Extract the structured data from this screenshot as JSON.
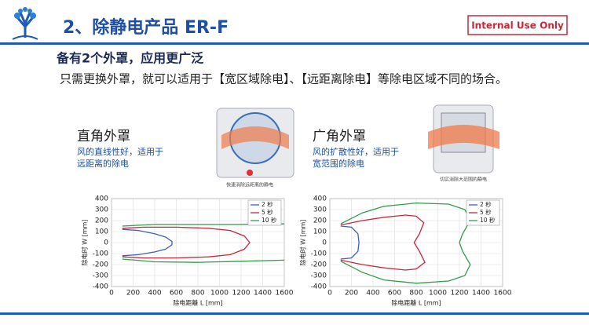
{
  "header": {
    "title": "2、除静电产品 ER-F",
    "badge": "Internal Use Only"
  },
  "subtitle": "备有2个外罩，应用更广泛",
  "description": "只需更换外罩，就可以适用于【宽区域除电】、【远距离除电】等除电区域不同的场合。",
  "panels": [
    {
      "title": "直角外罩",
      "lines": [
        "风的直线性好，适用于",
        "远距离的除电"
      ],
      "caption": "快速消除远距离的静电"
    },
    {
      "title": "广角外罩",
      "lines": [
        "风的扩散性好，适用于",
        "宽范围的除电"
      ],
      "caption": "切实消除大范围的静电"
    }
  ],
  "chart_data": [
    {
      "type": "line",
      "xlabel": "除电距離 L [mm]",
      "ylabel": "除电时 W [mm]",
      "xlim": [
        0,
        1600
      ],
      "ylim": [
        -400,
        400
      ],
      "xticks": [
        0,
        200,
        400,
        600,
        800,
        1000,
        1200,
        1400,
        1600
      ],
      "yticks": [
        -400,
        -300,
        -200,
        -100,
        0,
        100,
        200,
        300,
        400
      ],
      "grid": true,
      "legend": "upper right",
      "series": [
        {
          "name": "2 秒",
          "color": "#3b5fc0",
          "x": [
            100,
            250,
            400,
            500,
            560,
            560,
            500,
            400,
            250,
            100
          ],
          "values": [
            120,
            110,
            80,
            50,
            10,
            -20,
            -60,
            -85,
            -110,
            -120
          ]
        },
        {
          "name": "5 秒",
          "color": "#c8283a",
          "x": [
            100,
            300,
            600,
            900,
            1100,
            1230,
            1280,
            1230,
            1100,
            900,
            600,
            300,
            100
          ],
          "values": [
            130,
            140,
            140,
            130,
            110,
            60,
            0,
            -60,
            -110,
            -130,
            -140,
            -140,
            -130
          ]
        },
        {
          "name": "10 秒",
          "color": "#2e9e4a",
          "x": [
            100,
            400,
            800,
            1200,
            1600,
            null,
            100,
            400,
            800,
            1200,
            1600
          ],
          "values": [
            150,
            165,
            165,
            165,
            170,
            null,
            -150,
            -175,
            -180,
            -170,
            -160
          ]
        }
      ]
    },
    {
      "type": "line",
      "xlabel": "除电距離 L [mm]",
      "ylabel": "除电时 W [mm]",
      "xlim": [
        0,
        1600
      ],
      "ylim": [
        -400,
        400
      ],
      "xticks": [
        0,
        200,
        400,
        600,
        800,
        1000,
        1200,
        1400,
        1600
      ],
      "yticks": [
        -400,
        -300,
        -200,
        -100,
        0,
        100,
        200,
        300,
        400
      ],
      "grid": true,
      "legend": "upper right",
      "series": [
        {
          "name": "2 秒",
          "color": "#3b5fc0",
          "x": [
            100,
            200,
            260,
            270,
            260,
            200,
            100
          ],
          "values": [
            150,
            140,
            80,
            0,
            -80,
            -140,
            -150
          ]
        },
        {
          "name": "5 秒",
          "color": "#c8283a",
          "x": [
            100,
            300,
            500,
            700,
            800,
            870,
            830,
            780,
            830,
            880,
            800,
            700,
            500,
            300,
            100
          ],
          "values": [
            160,
            200,
            230,
            250,
            240,
            180,
            80,
            0,
            -80,
            -180,
            -240,
            -250,
            -230,
            -200,
            -160
          ]
        },
        {
          "name": "10 秒",
          "color": "#2e9e4a",
          "x": [
            100,
            300,
            500,
            800,
            1100,
            1250,
            1300,
            1230,
            1200,
            1230,
            1300,
            1250,
            1100,
            800,
            500,
            300,
            100
          ],
          "values": [
            170,
            270,
            330,
            360,
            350,
            300,
            200,
            80,
            0,
            -80,
            -200,
            -300,
            -350,
            -370,
            -340,
            -270,
            -170
          ]
        }
      ]
    }
  ]
}
